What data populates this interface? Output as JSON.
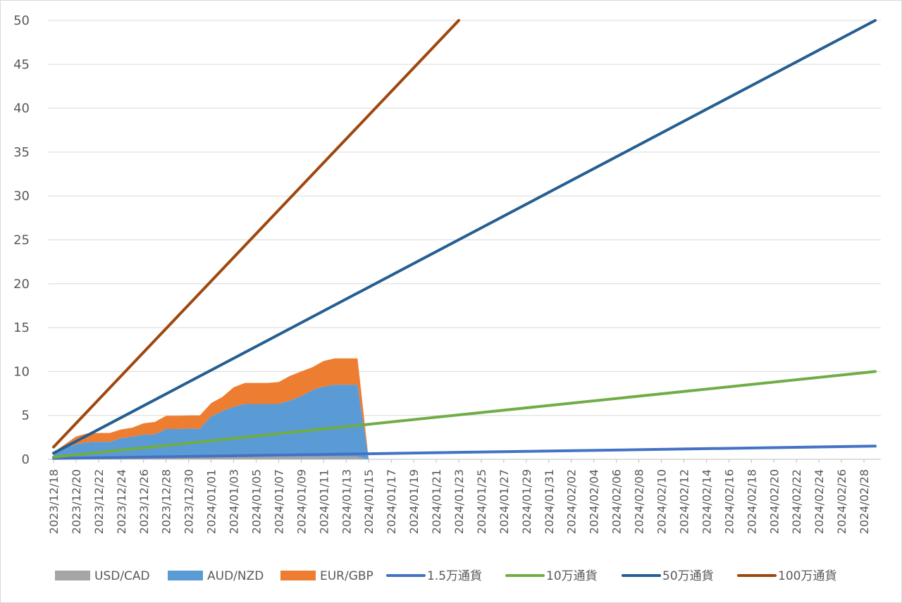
{
  "chart_data": {
    "type": "area",
    "title": "",
    "xlabel": "",
    "ylabel": "",
    "ylim": [
      0,
      50
    ],
    "yticks": [
      0,
      5,
      10,
      15,
      20,
      25,
      30,
      35,
      40,
      45,
      50
    ],
    "grid": true,
    "legend_position": "bottom",
    "x_start": "2023/12/18",
    "x_end": "2024/02/29",
    "x_tick_labels": [
      "2023/12/18",
      "2023/12/20",
      "2023/12/22",
      "2023/12/24",
      "2023/12/26",
      "2023/12/28",
      "2023/12/30",
      "2024/01/01",
      "2024/01/03",
      "2024/01/05",
      "2024/01/07",
      "2024/01/09",
      "2024/01/11",
      "2024/01/13",
      "2024/01/15",
      "2024/01/17",
      "2024/01/19",
      "2024/01/21",
      "2024/01/23",
      "2024/01/25",
      "2024/01/27",
      "2024/01/29",
      "2024/01/31",
      "2024/02/02",
      "2024/02/04",
      "2024/02/06",
      "2024/02/08",
      "2024/02/10",
      "2024/02/12",
      "2024/02/14",
      "2024/02/16",
      "2024/02/18",
      "2024/02/20",
      "2024/02/22",
      "2024/02/24",
      "2024/02/26",
      "2024/02/28"
    ],
    "area_x": [
      "2023/12/18",
      "2023/12/19",
      "2023/12/20",
      "2023/12/21",
      "2023/12/22",
      "2023/12/23",
      "2023/12/24",
      "2023/12/25",
      "2023/12/26",
      "2023/12/27",
      "2023/12/28",
      "2023/12/29",
      "2023/12/30",
      "2023/12/31",
      "2024/01/01",
      "2024/01/02",
      "2024/01/03",
      "2024/01/04",
      "2024/01/05",
      "2024/01/06",
      "2024/01/07",
      "2024/01/08",
      "2024/01/09",
      "2024/01/10",
      "2024/01/11",
      "2024/01/12",
      "2024/01/13",
      "2024/01/14",
      "2024/01/15"
    ],
    "stacked_areas": [
      {
        "name": "USD/CAD",
        "color": "#a5a5a5",
        "values": [
          0.1,
          0.1,
          0.1,
          0.15,
          0.2,
          0.2,
          0.2,
          0.2,
          0.2,
          0.25,
          0.25,
          0.25,
          0.3,
          0.3,
          0.3,
          0.3,
          0.3,
          0.3,
          0.3,
          0.3,
          0.3,
          0.3,
          0.3,
          0.3,
          0.3,
          0.3,
          0.3,
          0.3,
          0
        ]
      },
      {
        "name": "AUD/NZD",
        "color": "#5b9bd5",
        "values": [
          0.5,
          1.2,
          1.6,
          1.8,
          1.8,
          1.8,
          2.2,
          2.4,
          2.6,
          2.6,
          3.2,
          3.2,
          3.2,
          3.2,
          4.6,
          5.2,
          5.7,
          6.0,
          6.0,
          6.0,
          6.0,
          6.4,
          6.9,
          7.6,
          8.0,
          8.2,
          8.2,
          8.2,
          0
        ]
      },
      {
        "name": "EUR/GBP",
        "color": "#ed7d31",
        "values": [
          0.2,
          0.4,
          0.9,
          1.0,
          1.0,
          1.0,
          1.0,
          1.0,
          1.3,
          1.4,
          1.5,
          1.5,
          1.5,
          1.5,
          1.5,
          1.6,
          2.2,
          2.4,
          2.4,
          2.4,
          2.5,
          2.8,
          2.8,
          2.6,
          2.9,
          3.0,
          3.0,
          3.0,
          0
        ]
      }
    ],
    "line_series": [
      {
        "name": "1.5万通貨",
        "color": "#4472c4",
        "x": [
          "2023/12/18",
          "2024/02/29"
        ],
        "y": [
          0.1,
          1.5
        ]
      },
      {
        "name": "10万通貨",
        "color": "#70ad47",
        "x": [
          "2023/12/18",
          "2024/02/29"
        ],
        "y": [
          0.25,
          10
        ]
      },
      {
        "name": "50万通貨",
        "color": "#255e91",
        "x": [
          "2023/12/18",
          "2024/02/29"
        ],
        "y": [
          0.7,
          50
        ]
      },
      {
        "name": "100万通貨",
        "color": "#9e480e",
        "x": [
          "2023/12/18",
          "2024/01/23"
        ],
        "y": [
          1.4,
          50
        ]
      }
    ],
    "legend": [
      "USD/CAD",
      "AUD/NZD",
      "EUR/GBP",
      "1.5万通貨",
      "10万通貨",
      "50万通貨",
      "100万通貨"
    ]
  }
}
